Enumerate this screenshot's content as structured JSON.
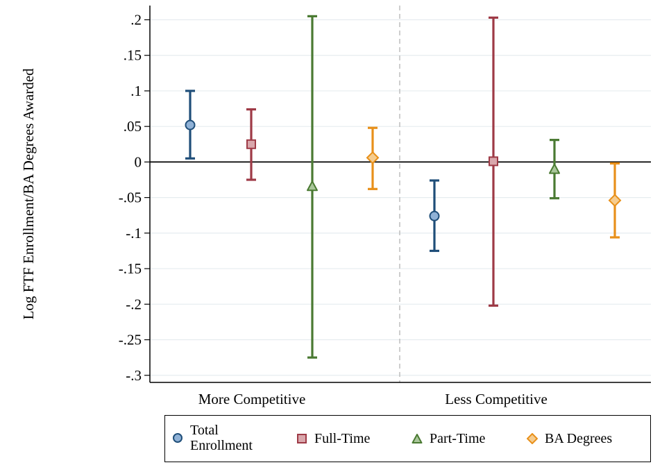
{
  "chart_data": {
    "type": "errorbar",
    "ylabel": "Log FTF Enrollment/BA Degrees Awarded",
    "xlabel": "",
    "ylim": [
      -0.31,
      0.22
    ],
    "yticks": [
      0.2,
      0.15,
      0.1,
      0.05,
      0,
      -0.05,
      -0.1,
      -0.15,
      -0.2,
      -0.25,
      -0.3
    ],
    "ytick_labels": [
      ".2",
      ".15",
      ".1",
      ".05",
      "0",
      "-.05",
      "-.1",
      "-.15",
      "-.2",
      "-.25",
      "-.3"
    ],
    "groups": [
      "More Competitive",
      "Less Competitive"
    ],
    "grid": true,
    "legend_position": "bottom",
    "series": [
      {
        "name": "Total Enrollment",
        "legend_lines": [
          "Total",
          "Enrollment"
        ],
        "color": "#1f4e79",
        "fill": "#8fb1d6",
        "marker": "circle",
        "points": [
          {
            "group": "More Competitive",
            "estimate": 0.052,
            "ci_low": 0.005,
            "ci_high": 0.1
          },
          {
            "group": "Less Competitive",
            "estimate": -0.076,
            "ci_low": -0.125,
            "ci_high": -0.026
          }
        ]
      },
      {
        "name": "Full-Time",
        "legend_lines": [
          "Full-Time"
        ],
        "color": "#9e3a46",
        "fill": "#d9a7ac",
        "marker": "square",
        "points": [
          {
            "group": "More Competitive",
            "estimate": 0.025,
            "ci_low": -0.025,
            "ci_high": 0.074
          },
          {
            "group": "Less Competitive",
            "estimate": 0.001,
            "ci_low": -0.202,
            "ci_high": 0.203
          }
        ]
      },
      {
        "name": "Part-Time",
        "legend_lines": [
          "Part-Time"
        ],
        "color": "#4a7a32",
        "fill": "#a9c69a",
        "marker": "triangle",
        "points": [
          {
            "group": "More Competitive",
            "estimate": -0.034,
            "ci_low": -0.275,
            "ci_high": 0.205
          },
          {
            "group": "Less Competitive",
            "estimate": -0.01,
            "ci_low": -0.051,
            "ci_high": 0.031
          }
        ]
      },
      {
        "name": "BA Degrees",
        "legend_lines": [
          "BA Degrees"
        ],
        "color": "#e8901a",
        "fill": "#f6cc8e",
        "marker": "diamond",
        "points": [
          {
            "group": "More Competitive",
            "estimate": 0.006,
            "ci_low": -0.038,
            "ci_high": 0.048
          },
          {
            "group": "Less Competitive",
            "estimate": -0.054,
            "ci_low": -0.106,
            "ci_high": -0.002
          }
        ]
      }
    ]
  }
}
